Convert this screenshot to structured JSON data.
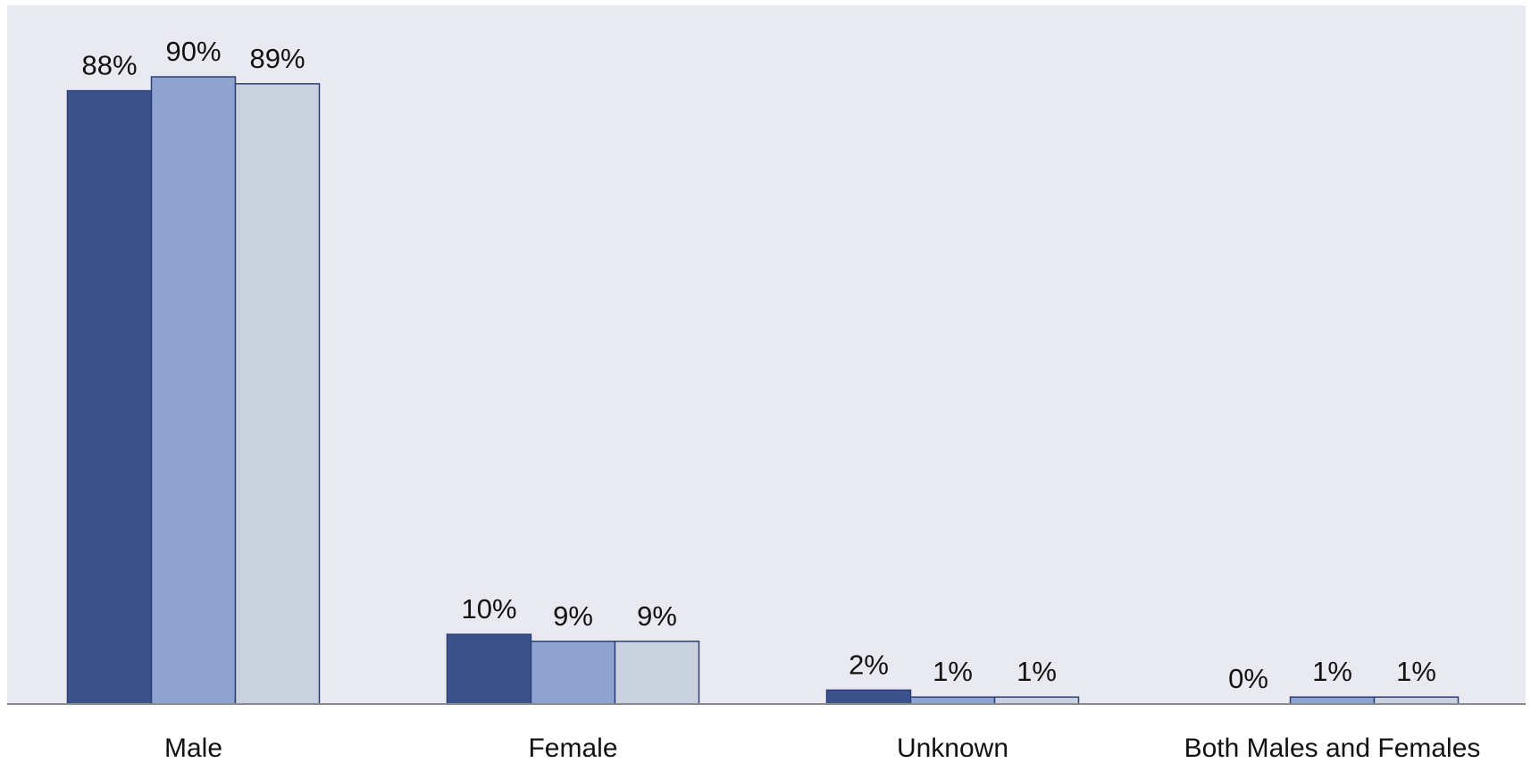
{
  "chart_data": {
    "type": "bar",
    "categories": [
      "Male",
      "Female",
      "Unknown",
      "Both Males and Females"
    ],
    "series": [
      {
        "values": [
          88,
          10,
          2,
          0
        ],
        "labels": [
          "88%",
          "10%",
          "2%",
          "0%"
        ],
        "color": "#3d528a"
      },
      {
        "values": [
          90,
          9,
          1,
          1
        ],
        "labels": [
          "90%",
          "9%",
          "1%",
          "1%"
        ],
        "color": "#8fa3d0"
      },
      {
        "values": [
          89,
          9,
          1,
          1
        ],
        "labels": [
          "89%",
          "9%",
          "1%",
          "1%"
        ],
        "color": "#cad1de"
      }
    ],
    "ylim": [
      0,
      100
    ],
    "grid": false,
    "colors": {
      "plot_background": "#e8e9f1",
      "bar_outline": "#2c3f78",
      "baseline": "#8a8a8a"
    }
  }
}
